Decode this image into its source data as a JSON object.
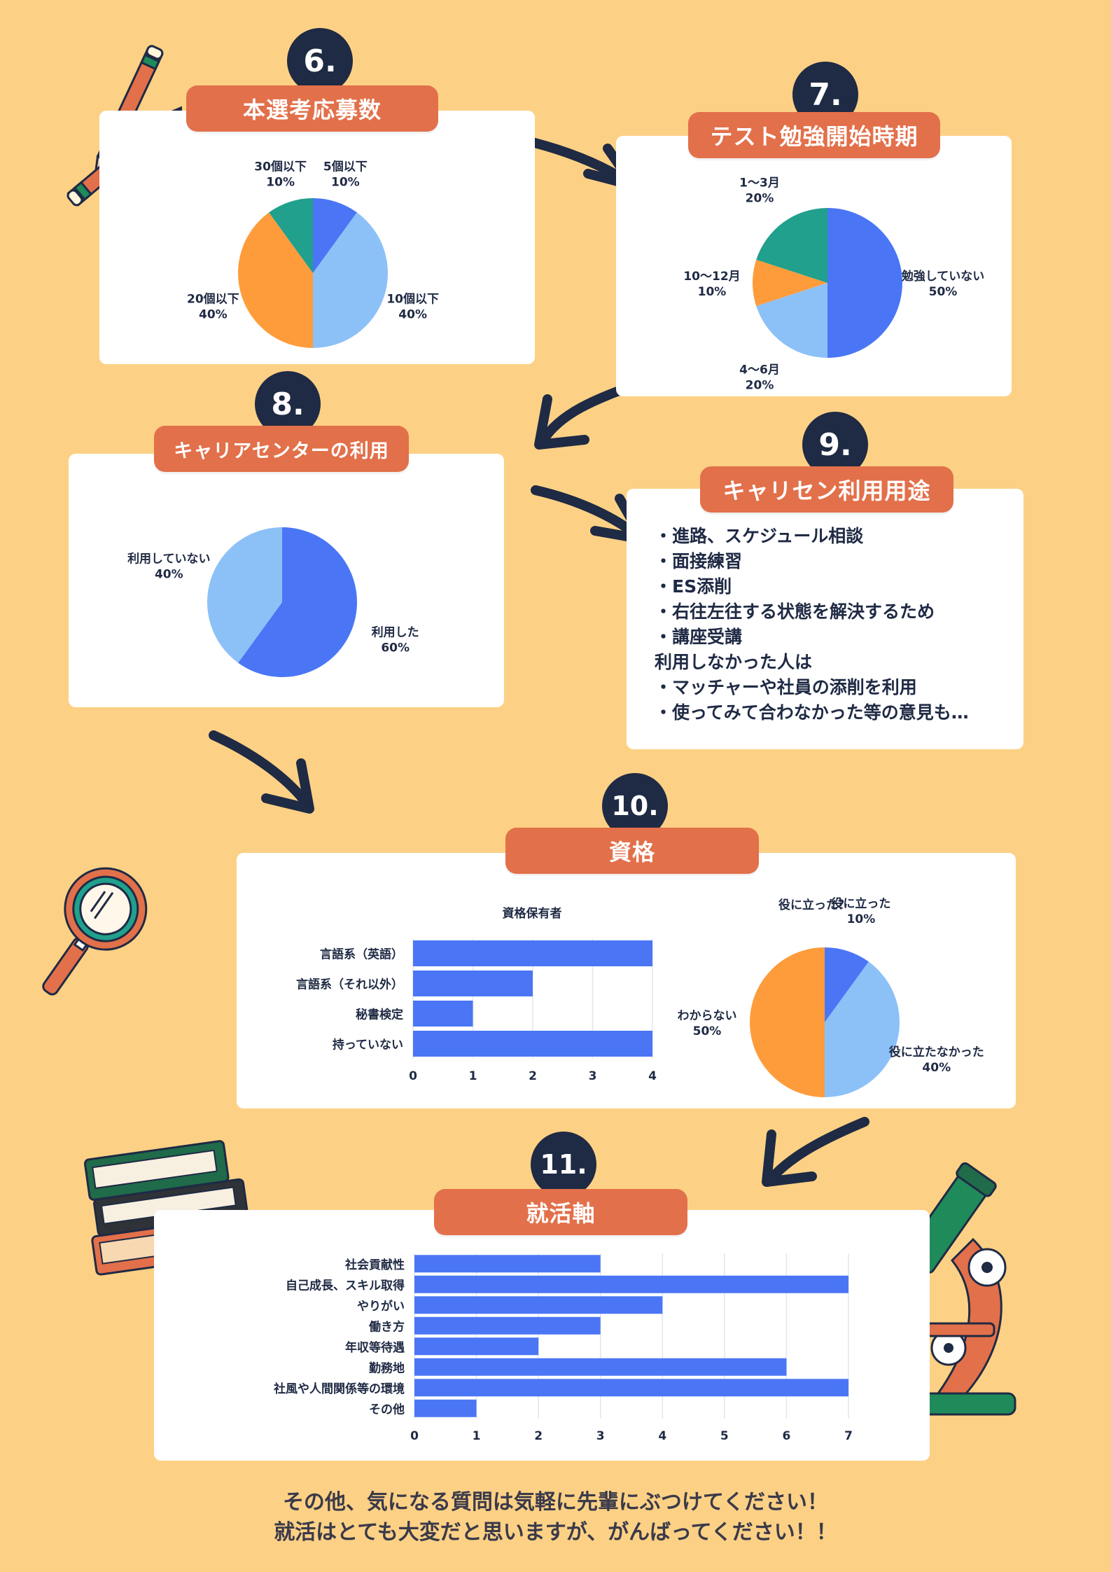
{
  "sections": {
    "s6": {
      "number": "6.",
      "title": "本選考応募数"
    },
    "s7": {
      "number": "7.",
      "title": "テスト勉強開始時期"
    },
    "s8": {
      "number": "8.",
      "title": "キャリアセンターの利用"
    },
    "s9": {
      "number": "9.",
      "title": "キャリセン利用用途"
    },
    "s10": {
      "number": "10.",
      "title": "資格"
    },
    "s11": {
      "number": "11.",
      "title": "就活軸"
    }
  },
  "usage_list": [
    "・進路、スケジュール相談",
    "・面接練習",
    "・ES添削",
    "・右往左往する状態を解決するため",
    "・講座受講",
    "利用しなかった人は",
    "・マッチャーや社員の添削を利用",
    "・使ってみて合わなかった等の意見も…"
  ],
  "footer": {
    "line1": "その他、気になる質問は気軽に先輩にぶつけてください！",
    "line2": "就活はとても大変だと思いますが、がんばってください！！"
  },
  "colors": {
    "blue": "#4a76f5",
    "light_blue": "#8cc1f7",
    "orange": "#fe9c3c",
    "teal": "#20a08d",
    "ribbon": "#e2704a",
    "navy": "#1f2a44",
    "background": "#fdd185"
  },
  "chart_data": [
    {
      "id": "applications",
      "type": "pie",
      "slices": [
        {
          "label": "5個以下",
          "value": 10,
          "color": "#4a76f5",
          "display": "10%"
        },
        {
          "label": "10個以下",
          "value": 40,
          "color": "#8cc1f7",
          "display": "40%"
        },
        {
          "label": "20個以下",
          "value": 40,
          "color": "#fe9c3c",
          "display": "40%"
        },
        {
          "label": "30個以下",
          "value": 10,
          "color": "#20a08d",
          "display": "10%"
        }
      ]
    },
    {
      "id": "study_start",
      "type": "pie",
      "slices": [
        {
          "label": "勉強していない",
          "value": 50,
          "color": "#4a76f5",
          "display": "50%"
        },
        {
          "label": "4〜6月",
          "value": 20,
          "color": "#8cc1f7",
          "display": "20%"
        },
        {
          "label": "10〜12月",
          "value": 10,
          "color": "#fe9c3c",
          "display": "10%"
        },
        {
          "label": "1〜3月",
          "value": 20,
          "color": "#20a08d",
          "display": "20%"
        }
      ]
    },
    {
      "id": "career_center",
      "type": "pie",
      "slices": [
        {
          "label": "利用した",
          "value": 60,
          "color": "#4a76f5",
          "display": "60%"
        },
        {
          "label": "利用していない",
          "value": 40,
          "color": "#8cc1f7",
          "display": "40%"
        }
      ]
    },
    {
      "id": "qualifications",
      "type": "bar",
      "orientation": "horizontal",
      "title": "資格保有者",
      "categories": [
        "言語系（英語）",
        "言語系（それ以外）",
        "秘書検定",
        "持っていない"
      ],
      "values": [
        4,
        2,
        1,
        4
      ],
      "xlim": [
        0,
        4
      ],
      "xticks": [
        "0",
        "1",
        "2",
        "3",
        "4"
      ],
      "color": "#4a76f5"
    },
    {
      "id": "useful",
      "type": "pie",
      "title": "役に立った？",
      "slices": [
        {
          "label": "役に立った",
          "value": 10,
          "color": "#4a76f5",
          "display": "10%"
        },
        {
          "label": "役に立たなかった",
          "value": 40,
          "color": "#8cc1f7",
          "display": "40%"
        },
        {
          "label": "わからない",
          "value": 50,
          "color": "#fe9c3c",
          "display": "50%"
        }
      ]
    },
    {
      "id": "job_axis",
      "type": "bar",
      "orientation": "horizontal",
      "categories": [
        "社会貢献性",
        "自己成長、スキル取得",
        "やりがい",
        "働き方",
        "年収等待遇",
        "勤務地",
        "社風や人間関係等の環境",
        "その他"
      ],
      "values": [
        3,
        7,
        4,
        3,
        2,
        6,
        7,
        1
      ],
      "xlim": [
        0,
        7
      ],
      "xticks": [
        "0",
        "1",
        "2",
        "3",
        "4",
        "5",
        "6",
        "7"
      ],
      "color": "#4a76f5"
    }
  ]
}
